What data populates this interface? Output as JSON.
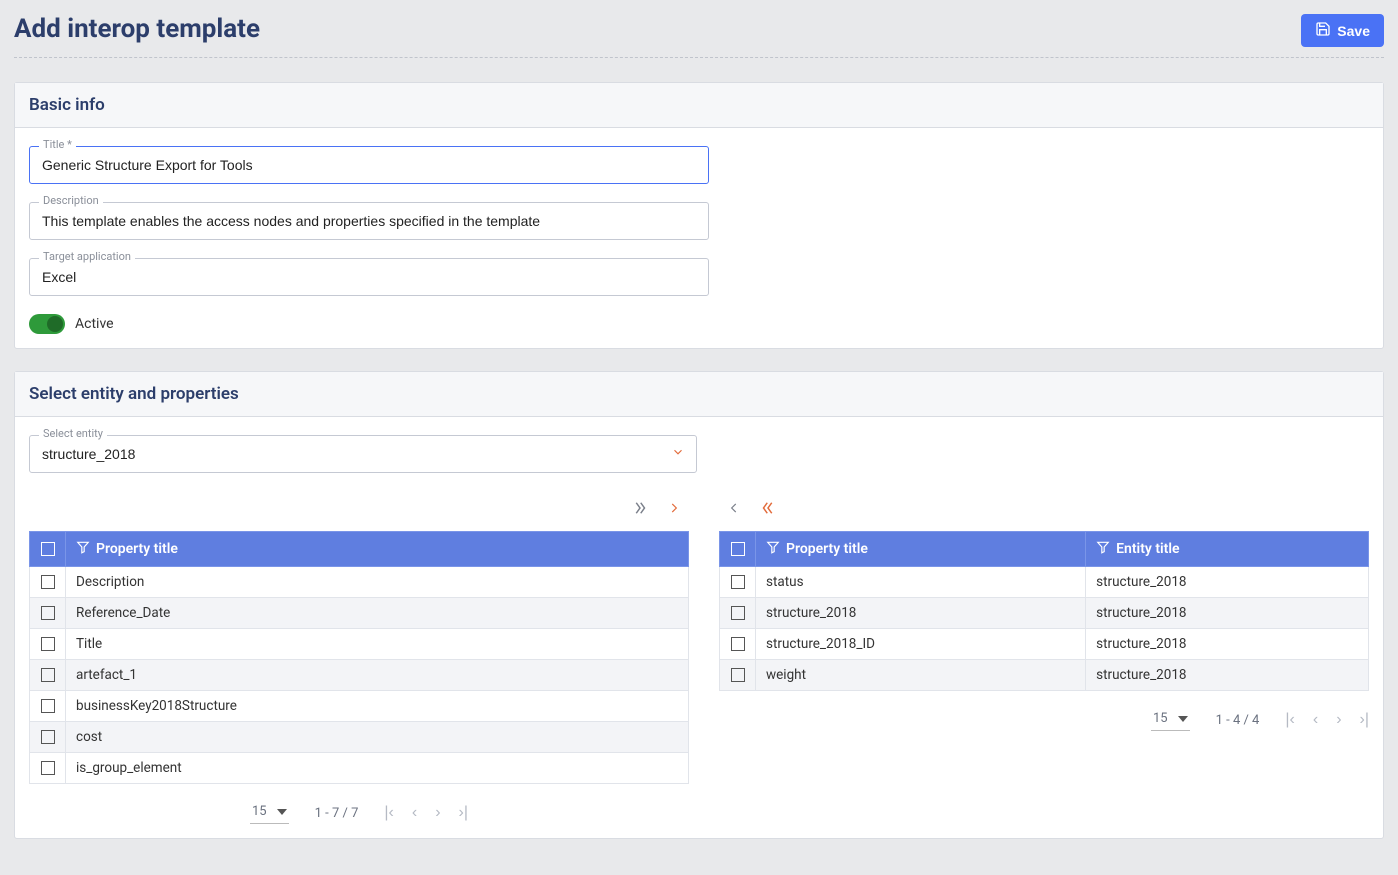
{
  "header": {
    "title": "Add interop template",
    "save_label": "Save"
  },
  "basic_info": {
    "section_title": "Basic info",
    "title_label": "Title *",
    "title_value": "Generic Structure Export for Tools",
    "description_label": "Description",
    "description_value": "This template enables the access nodes and properties specified in the template",
    "target_label": "Target application",
    "target_value": "Excel",
    "active_label": "Active",
    "active_on": true
  },
  "entity_section": {
    "section_title": "Select entity and properties",
    "select_label": "Select entity",
    "select_value": "structure_2018",
    "left_table": {
      "col_property": "Property title",
      "rows": [
        "Description",
        "Reference_Date",
        "Title",
        "artefact_1",
        "businessKey2018Structure",
        "cost",
        "is_group_element"
      ],
      "page_size": "15",
      "range": "1 - 7 / 7"
    },
    "right_table": {
      "col_property": "Property title",
      "col_entity": "Entity title",
      "rows": [
        {
          "prop": "status",
          "entity": "structure_2018"
        },
        {
          "prop": "structure_2018",
          "entity": "structure_2018"
        },
        {
          "prop": "structure_2018_ID",
          "entity": "structure_2018"
        },
        {
          "prop": "weight",
          "entity": "structure_2018"
        }
      ],
      "page_size": "15",
      "range": "1 - 4 / 4"
    }
  },
  "colors": {
    "accent": "#4a72f5",
    "header_text": "#2c3e6b",
    "table_header": "#5f7ee0",
    "toggle_on": "#2e9a3a",
    "transfer_accent": "#e26a3a"
  }
}
